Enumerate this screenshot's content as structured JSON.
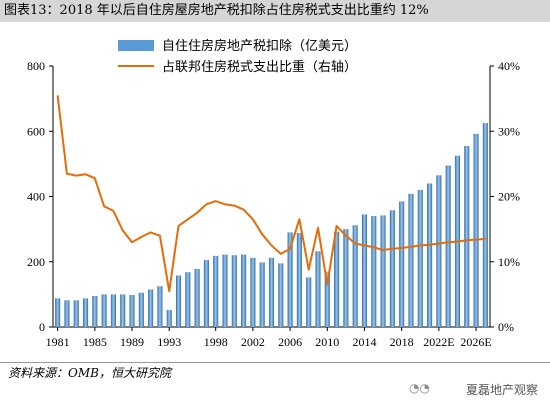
{
  "title": "图表13：2018 年以后自住房屋房地产税扣除占住房税式支出比重约 12%",
  "source": "资料来源：OMB，恒大研究院",
  "watermark": "夏磊地产观察",
  "watermark_icon": "wechat-icon",
  "colors": {
    "bar": "#5b9bd5",
    "bar_dark": "#2f6fa8",
    "line": "#e46c0a"
  },
  "chart_data": {
    "type": "bar",
    "x": [
      1981,
      1982,
      1983,
      1984,
      1985,
      1986,
      1987,
      1988,
      1989,
      1990,
      1991,
      1992,
      1993,
      1994,
      1995,
      1996,
      1997,
      1998,
      1999,
      2000,
      2001,
      2002,
      2003,
      2004,
      2005,
      2006,
      2007,
      2008,
      2009,
      2010,
      2011,
      2012,
      2013,
      2014,
      2015,
      2016,
      2017,
      2018,
      2019,
      2020,
      2021,
      2022,
      2023,
      2024,
      2025,
      2026,
      2027
    ],
    "tick_labels": [
      "1981",
      "1985",
      "1989",
      "1993",
      "1998",
      "2002",
      "2006",
      "2010",
      "2014",
      "2018",
      "2022E",
      "2026E"
    ],
    "series": [
      {
        "name": "自住住房房地产税扣除（亿美元）",
        "type": "bar",
        "axis": "left",
        "values": [
          88,
          82,
          82,
          88,
          95,
          100,
          100,
          100,
          98,
          105,
          115,
          125,
          52,
          158,
          168,
          178,
          205,
          218,
          222,
          220,
          222,
          212,
          198,
          212,
          195,
          290,
          288,
          152,
          232,
          170,
          292,
          300,
          312,
          345,
          340,
          342,
          358,
          385,
          408,
          420,
          440,
          465,
          495,
          525,
          555,
          592,
          625
        ]
      },
      {
        "name": "占联邦住房税式支出比重（右轴）",
        "type": "line",
        "axis": "right",
        "values": [
          35.5,
          23.5,
          23.2,
          23.4,
          22.8,
          18.5,
          17.8,
          14.8,
          13.0,
          13.8,
          14.5,
          14.0,
          5.5,
          15.5,
          16.5,
          17.5,
          18.8,
          19.3,
          18.8,
          18.6,
          18.0,
          16.5,
          14.2,
          12.5,
          11.2,
          12.0,
          16.5,
          8.8,
          15.2,
          6.5,
          15.5,
          14.0,
          12.8,
          12.5,
          12.2,
          11.8,
          12.0,
          12.1,
          12.3,
          12.5,
          12.6,
          12.8,
          13.0,
          13.1,
          13.3,
          13.4,
          13.5
        ]
      }
    ],
    "y_left": {
      "range": [
        0,
        800
      ],
      "ticks": [
        "0",
        "200",
        "400",
        "600",
        "800"
      ]
    },
    "y_right": {
      "range": [
        0,
        40
      ],
      "ticks": [
        "0%",
        "10%",
        "20%",
        "30%",
        "40%"
      ]
    },
    "legend": "top"
  }
}
